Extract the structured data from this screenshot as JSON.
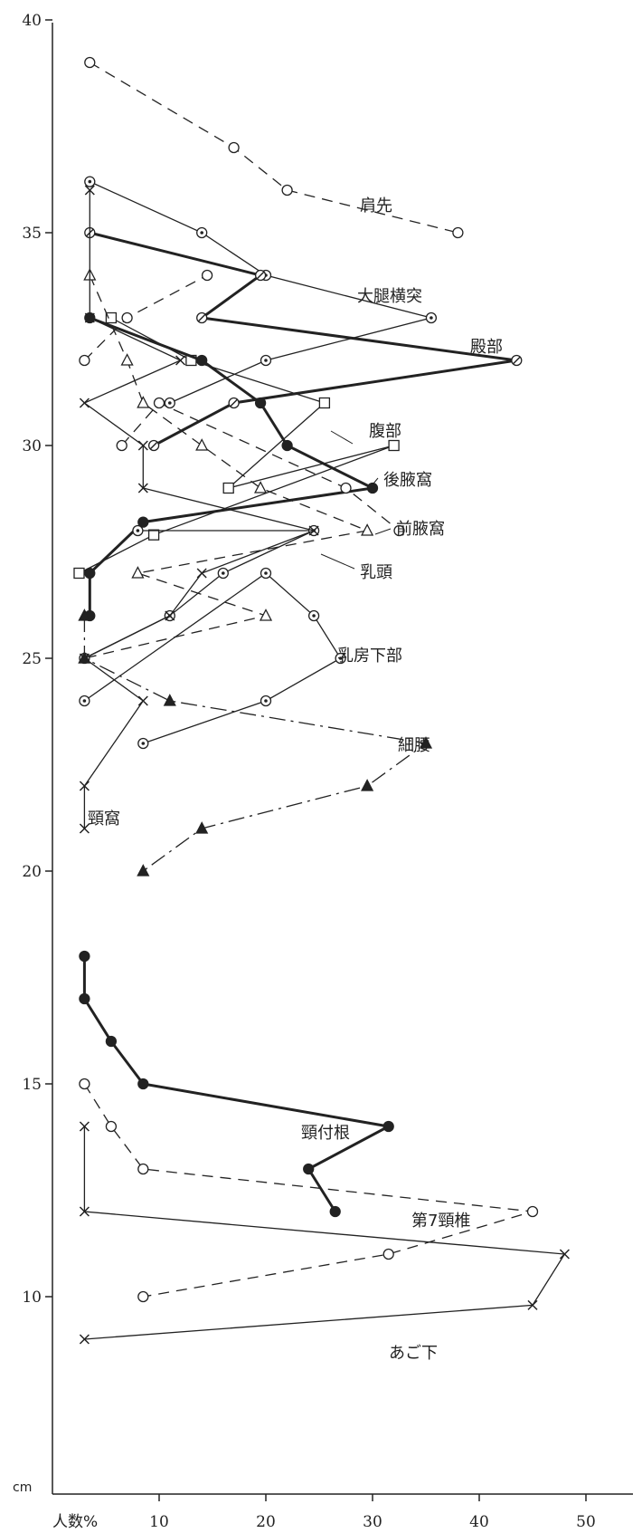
{
  "chart_data": {
    "type": "line",
    "title": "",
    "xlabel": "人数%",
    "ylabel": "",
    "y_unit": "cm",
    "xlim": [
      0,
      50
    ],
    "ylim": [
      8,
      40
    ],
    "x_ticks": [
      "10",
      "20",
      "30",
      "40",
      "50"
    ],
    "y_ticks": [
      "10",
      "15",
      "20",
      "25",
      "30",
      "35",
      "40"
    ],
    "grid": false,
    "series": [
      {
        "name": "肩先",
        "line": "dashed",
        "marker": "open-circle",
        "weight": "thin",
        "points": [
          [
            3.5,
            39
          ],
          [
            17,
            37
          ],
          [
            22,
            36
          ],
          [
            38,
            35
          ]
        ]
      },
      {
        "name": "大腿横突",
        "line": "solid",
        "marker": "dot-circle",
        "weight": "thin",
        "points": [
          [
            3.5,
            36.2
          ],
          [
            14,
            35
          ],
          [
            20,
            34
          ],
          [
            35.5,
            33
          ],
          [
            20,
            32
          ],
          [
            11,
            31
          ]
        ]
      },
      {
        "name": "殿部",
        "line": "solid",
        "marker": "slash-circle",
        "weight": "bold",
        "points": [
          [
            3.5,
            35
          ],
          [
            19.5,
            34
          ],
          [
            14,
            33
          ],
          [
            43.5,
            32
          ],
          [
            17,
            31
          ],
          [
            9.5,
            30
          ]
        ]
      },
      {
        "name": "腹部",
        "line": "solid",
        "marker": "open-square",
        "weight": "thin",
        "points": [
          [
            2.5,
            27
          ],
          [
            9.5,
            27.9
          ],
          [
            32,
            30
          ],
          [
            16.5,
            29
          ],
          [
            25.5,
            31
          ],
          [
            13,
            32
          ],
          [
            5.5,
            33
          ]
        ]
      },
      {
        "name": "後腋窩",
        "line": "solid",
        "marker": "filled-circle",
        "weight": "bold",
        "points": [
          [
            3.5,
            33
          ],
          [
            14,
            32
          ],
          [
            19.5,
            31
          ],
          [
            22,
            30
          ],
          [
            30,
            29
          ],
          [
            8.5,
            28.2
          ],
          [
            3.5,
            27
          ],
          [
            3.5,
            26
          ]
        ]
      },
      {
        "name": "前腋窩",
        "line": "dashed",
        "marker": "open-circle",
        "weight": "thin",
        "points": [
          [
            3,
            32
          ],
          [
            7,
            33
          ],
          [
            14.5,
            34
          ]
        ]
      },
      {
        "name": "",
        "line": "dashed",
        "marker": "open-circle",
        "weight": "thin",
        "points": [
          [
            6.5,
            30
          ],
          [
            10,
            31
          ],
          [
            27.5,
            29
          ],
          [
            32.5,
            28
          ]
        ]
      },
      {
        "name": "乳頭",
        "line": "dashed",
        "marker": "open-triangle",
        "weight": "thin",
        "points": [
          [
            3.5,
            34
          ],
          [
            7,
            32
          ],
          [
            8.5,
            31
          ],
          [
            14,
            30
          ],
          [
            19.5,
            29
          ],
          [
            29.5,
            28
          ],
          [
            8,
            27
          ],
          [
            20,
            26
          ],
          [
            3,
            25
          ]
        ]
      },
      {
        "name": "乳房下部",
        "line": "solid",
        "marker": "dot-circle",
        "weight": "thin",
        "points": [
          [
            3,
            24
          ],
          [
            20,
            27
          ],
          [
            24.5,
            26
          ],
          [
            27,
            25
          ],
          [
            20,
            24
          ],
          [
            8.5,
            23
          ]
        ]
      },
      {
        "name": "",
        "line": "solid",
        "marker": "dot-circle",
        "weight": "thin",
        "points": [
          [
            3,
            25
          ],
          [
            11,
            26
          ],
          [
            16,
            27
          ],
          [
            24.5,
            28
          ],
          [
            8,
            28
          ]
        ]
      },
      {
        "name": "細腰",
        "line": "dash-dot",
        "marker": "filled-triangle",
        "weight": "thin",
        "points": [
          [
            3,
            26
          ],
          [
            3,
            25
          ],
          [
            11,
            24
          ],
          [
            35,
            23
          ],
          [
            29.5,
            22
          ],
          [
            14,
            21
          ],
          [
            8.5,
            20
          ]
        ]
      },
      {
        "name": "頸窩",
        "line": "solid",
        "marker": "cross",
        "weight": "thin",
        "points": [
          [
            3.5,
            36
          ],
          [
            3.5,
            33
          ],
          [
            12,
            32
          ],
          [
            3,
            31
          ],
          [
            8.5,
            30
          ],
          [
            8.5,
            29
          ],
          [
            24.5,
            28
          ],
          [
            14,
            27
          ],
          [
            11,
            26
          ],
          [
            3,
            25
          ],
          [
            8.5,
            24
          ],
          [
            3,
            22
          ],
          [
            3,
            21
          ]
        ]
      },
      {
        "name": "頸付根",
        "line": "solid",
        "marker": "filled-circle",
        "weight": "bold",
        "points": [
          [
            3,
            18
          ],
          [
            3,
            17
          ],
          [
            5.5,
            16
          ],
          [
            8.5,
            15
          ],
          [
            31.5,
            14
          ],
          [
            24,
            13
          ],
          [
            26.5,
            12
          ]
        ]
      },
      {
        "name": "第7頸椎",
        "line": "dashed",
        "marker": "open-circle",
        "weight": "thin",
        "points": [
          [
            3,
            15
          ],
          [
            5.5,
            14
          ],
          [
            8.5,
            13
          ],
          [
            45,
            12
          ],
          [
            31.5,
            11
          ],
          [
            8.5,
            10
          ]
        ]
      },
      {
        "name": "あご下",
        "line": "solid",
        "marker": "cross",
        "weight": "thin",
        "points": [
          [
            3,
            14
          ],
          [
            3,
            12
          ],
          [
            48,
            11
          ],
          [
            45,
            9.8
          ],
          [
            3,
            9
          ]
        ]
      }
    ],
    "annotations": [
      "肩先",
      "大腿横突",
      "殿部",
      "腹部",
      "後腋窩",
      "前腋窩",
      "乳頭",
      "乳房下部",
      "細腰",
      "頸窩",
      "頸付根",
      "第7頸椎",
      "あご下"
    ]
  }
}
